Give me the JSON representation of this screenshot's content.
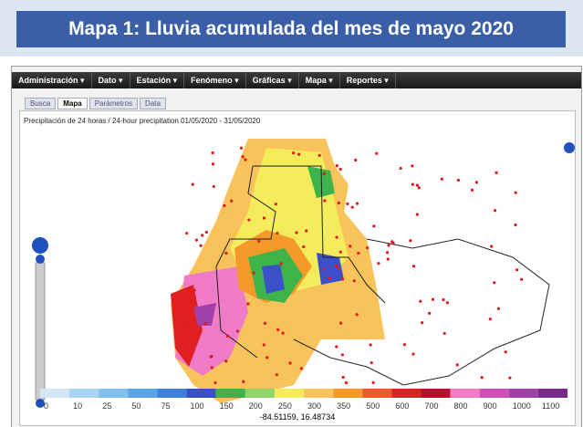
{
  "header": {
    "title": "Mapa 1: Lluvia acumulada del mes de mayo 2020"
  },
  "menu": [
    "Administración",
    "Dato",
    "Estación",
    "Fenómeno",
    "Gráficas",
    "Mapa",
    "Reportes"
  ],
  "tabs": [
    "Busca",
    "Mapa",
    "Parámetros",
    "Data"
  ],
  "active_tab": 1,
  "map": {
    "subtitle": "Precipitación de 24 horas / 24-hour precipitation 01/05/2020 - 31/05/2020",
    "coordinates": "-84.51159, 16.48734"
  },
  "legend": {
    "labels": [
      "0",
      "10",
      "25",
      "50",
      "75",
      "100",
      "150",
      "200",
      "250",
      "300",
      "350",
      "500",
      "600",
      "700",
      "800",
      "900",
      "1000",
      "1100"
    ],
    "colors": [
      "#d2e6f5",
      "#a9d4f2",
      "#7fc0ee",
      "#5aa5e8",
      "#3f7fdc",
      "#3a4fc8",
      "#3cb44a",
      "#8fd46a",
      "#f4ec5a",
      "#f7c35a",
      "#f59a2a",
      "#ef5a28",
      "#e02020",
      "#b8102a",
      "#f07cc8",
      "#d24fb8",
      "#a040a8",
      "#7a2a8c"
    ]
  }
}
